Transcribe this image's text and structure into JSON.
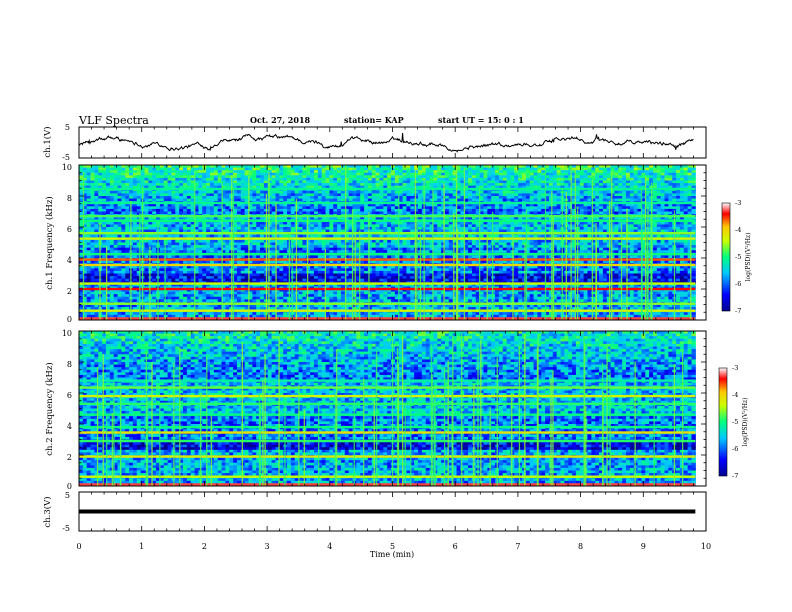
{
  "header": {
    "title": "VLF Spectra",
    "date": "Oct. 27, 2018",
    "station": "station= KAP",
    "start_ut": "start  UT =   15: 0  : 1"
  },
  "chart_data": [
    {
      "type": "line",
      "ylabel": "ch.1(V)",
      "ylim": [
        -5,
        5
      ],
      "yticks": [
        "5",
        "-5"
      ],
      "xlim": [
        0,
        10
      ],
      "series": [
        {
          "values_summary": "noisy waveform fluctuating mostly between -2 and 2 V across 0–9.8 min"
        }
      ]
    },
    {
      "type": "heatmap",
      "ylabel": "ch.1 Frequency (kHz)",
      "ylim": [
        0,
        10
      ],
      "yticks": [
        "0",
        "2",
        "4",
        "6",
        "8",
        "10"
      ],
      "xlim": [
        0,
        9.83
      ],
      "colorbar": {
        "label": "log(PSD)(V²/Hz)",
        "range": [
          -7,
          -3
        ],
        "ticks": [
          "-3",
          "-4",
          "-5",
          "-6",
          "-7"
        ]
      },
      "bands_khz": [
        {
          "f": 0.1,
          "level": -3.3
        },
        {
          "f": 0.6,
          "level": -4.3
        },
        {
          "f": 1.05,
          "level": -4.6
        },
        {
          "f": 2.0,
          "level": -3.4
        },
        {
          "f": 2.35,
          "level": -4.4
        },
        {
          "f": 3.55,
          "level": -4.0
        },
        {
          "f": 3.9,
          "level": -3.6
        },
        {
          "f": 4.25,
          "level": -5.0
        },
        {
          "f": 5.25,
          "level": -4.3
        },
        {
          "f": 5.6,
          "level": -4.6
        },
        {
          "f": 6.4,
          "level": -5.0
        },
        {
          "f": 6.7,
          "level": -4.8
        },
        {
          "f": 7.55,
          "level": -5.1
        },
        {
          "f": 8.45,
          "level": -5.1
        }
      ]
    },
    {
      "type": "heatmap",
      "ylabel": "ch.2 Frequency (kHz)",
      "ylim": [
        0,
        10
      ],
      "yticks": [
        "0",
        "2",
        "4",
        "6",
        "8",
        "10"
      ],
      "xlim": [
        0,
        9.83
      ],
      "colorbar": {
        "label": "log(PSD)(V²/Hz)",
        "range": [
          -7,
          -3
        ],
        "ticks": [
          "-3",
          "-4",
          "-5",
          "-6",
          "-7"
        ]
      },
      "bands_khz": [
        {
          "f": 0.1,
          "level": -3.3
        },
        {
          "f": 0.6,
          "level": -4.4
        },
        {
          "f": 1.9,
          "level": -4.2
        },
        {
          "f": 2.9,
          "level": -4.9
        },
        {
          "f": 3.45,
          "level": -4.1
        },
        {
          "f": 3.8,
          "level": -5.0
        },
        {
          "f": 4.6,
          "level": -5.0
        },
        {
          "f": 5.3,
          "level": -4.9
        },
        {
          "f": 5.8,
          "level": -4.3
        },
        {
          "f": 6.35,
          "level": -4.7
        },
        {
          "f": 6.8,
          "level": -5.2
        }
      ]
    },
    {
      "type": "line",
      "ylabel": "ch.3(V)",
      "ylim": [
        -5,
        5
      ],
      "yticks": [
        "5",
        "-5"
      ],
      "xlim": [
        0,
        10
      ],
      "series": [
        {
          "values_summary": "flat line at about 0 V from 0 to 9.83 min"
        }
      ]
    }
  ],
  "x_axis": {
    "label": "Time  (min)",
    "range": [
      0,
      10
    ],
    "ticks": [
      "0",
      "1",
      "2",
      "3",
      "4",
      "5",
      "6",
      "7",
      "8",
      "9",
      "10"
    ]
  },
  "colors": {
    "line": "#000000",
    "frame": "#000000",
    "background": "#ffffff"
  }
}
